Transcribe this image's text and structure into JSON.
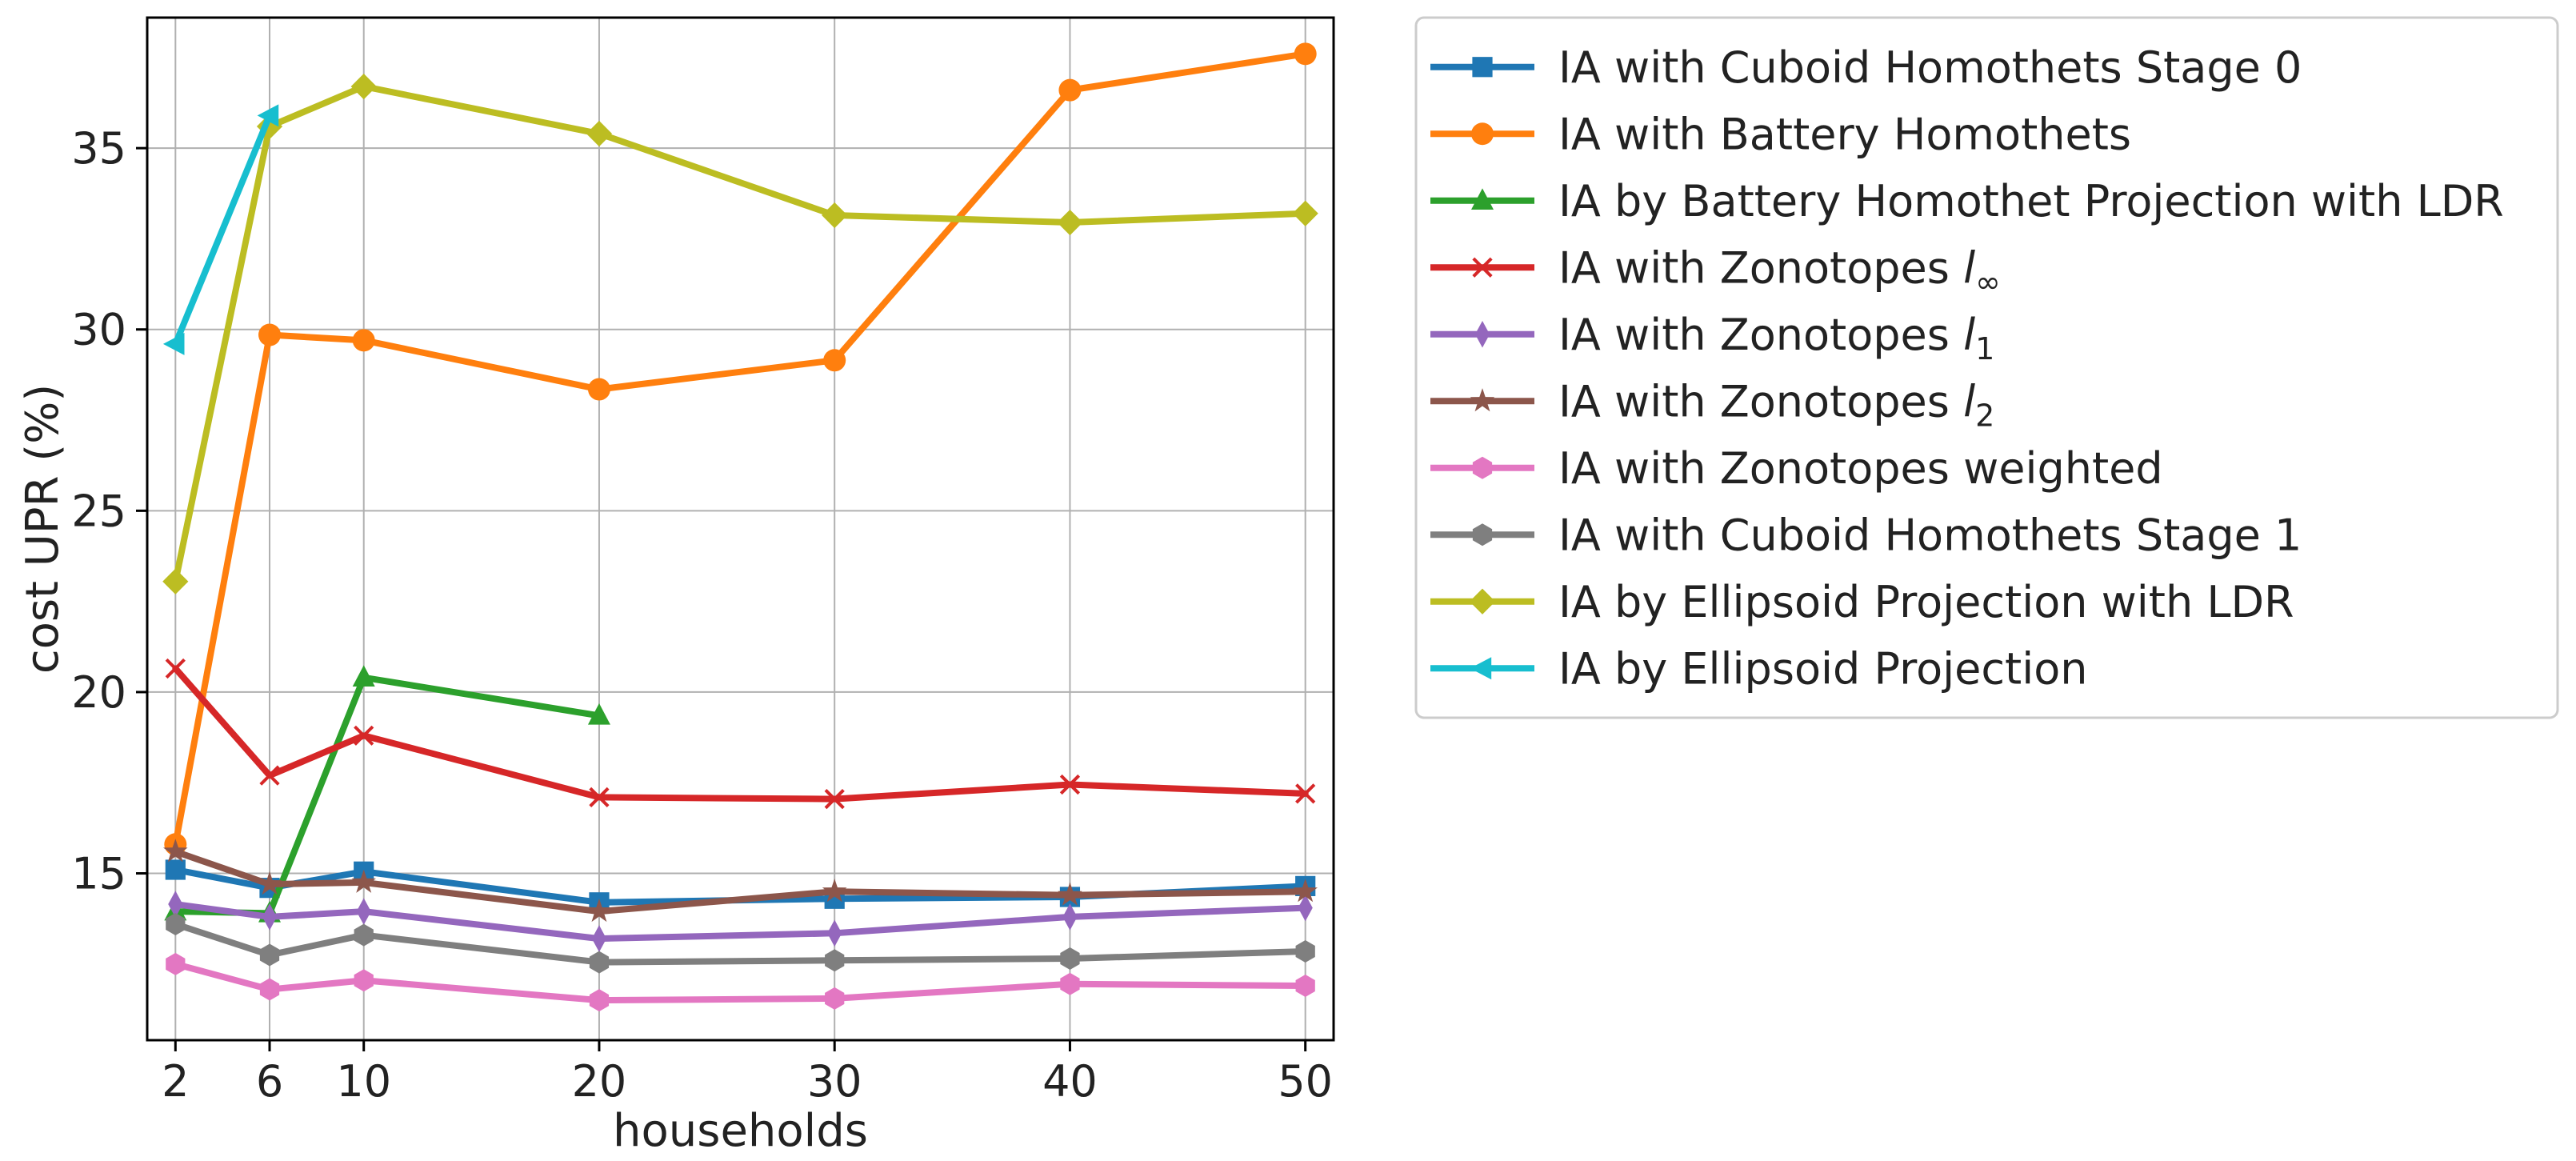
{
  "chart_data": {
    "type": "line",
    "title": "",
    "xlabel": "households",
    "ylabel": "cost UPR (%)",
    "xlim": [
      0.8,
      51.2
    ],
    "ylim": [
      10.4,
      38.6
    ],
    "xticks": [
      2,
      6,
      10,
      20,
      30,
      40,
      50
    ],
    "yticks": [
      15,
      20,
      25,
      30,
      35
    ],
    "grid": true,
    "legend_position": "outside-right-top",
    "series": [
      {
        "name": "IA with Cuboid Homothets Stage 0",
        "label_main": "IA with Cuboid Homothets Stage 0",
        "label_sym": "",
        "label_sub": "",
        "color": "#1f77b4",
        "marker": "square",
        "x": [
          2,
          6,
          10,
          20,
          30,
          40,
          50
        ],
        "y": [
          15.1,
          14.6,
          15.05,
          14.2,
          14.3,
          14.35,
          14.65
        ]
      },
      {
        "name": "IA with Battery Homothets",
        "label_main": "IA with Battery Homothets",
        "label_sym": "",
        "label_sub": "",
        "color": "#ff7f0e",
        "marker": "circle",
        "x": [
          2,
          6,
          10,
          20,
          30,
          40,
          50
        ],
        "y": [
          15.8,
          29.85,
          29.7,
          28.35,
          29.15,
          36.6,
          37.6
        ]
      },
      {
        "name": "IA by Battery Homothet Projection with LDR",
        "label_main": "IA by Battery Homothet Projection with LDR",
        "label_sym": "",
        "label_sub": "",
        "color": "#2ca02c",
        "marker": "triangle-up",
        "x": [
          2,
          6,
          10,
          20
        ],
        "y": [
          13.95,
          13.9,
          20.4,
          19.35
        ]
      },
      {
        "name": "IA with Zonotopes l∞",
        "label_main": "IA with Zonotopes ",
        "label_sym": "l",
        "label_sub": "∞",
        "color": "#d62728",
        "marker": "x",
        "x": [
          2,
          6,
          10,
          20,
          30,
          40,
          50
        ],
        "y": [
          20.65,
          17.7,
          18.8,
          17.1,
          17.05,
          17.45,
          17.2
        ]
      },
      {
        "name": "IA with Zonotopes l1",
        "label_main": "IA with Zonotopes ",
        "label_sym": "l",
        "label_sub": "1",
        "color": "#9467bd",
        "marker": "diamond-thin",
        "x": [
          2,
          6,
          10,
          20,
          30,
          40,
          50
        ],
        "y": [
          14.15,
          13.8,
          13.95,
          13.2,
          13.35,
          13.8,
          14.05
        ]
      },
      {
        "name": "IA with Zonotopes l2",
        "label_main": "IA with Zonotopes ",
        "label_sym": "l",
        "label_sub": "2",
        "color": "#8c564b",
        "marker": "star",
        "x": [
          2,
          6,
          10,
          20,
          30,
          40,
          50
        ],
        "y": [
          15.6,
          14.7,
          14.75,
          13.95,
          14.5,
          14.4,
          14.5
        ]
      },
      {
        "name": "IA with Zonotopes weighted",
        "label_main": "IA with Zonotopes weighted",
        "label_sym": "",
        "label_sub": "",
        "color": "#e377c2",
        "marker": "hexagon",
        "x": [
          2,
          6,
          10,
          20,
          30,
          40,
          50
        ],
        "y": [
          12.5,
          11.8,
          12.05,
          11.5,
          11.55,
          11.95,
          11.9
        ]
      },
      {
        "name": "IA with Cuboid Homothets Stage 1",
        "label_main": "IA with Cuboid Homothets Stage 1",
        "label_sym": "",
        "label_sub": "",
        "color": "#7f7f7f",
        "marker": "hexagon",
        "x": [
          2,
          6,
          10,
          20,
          30,
          40,
          50
        ],
        "y": [
          13.6,
          12.75,
          13.3,
          12.55,
          12.6,
          12.65,
          12.85
        ]
      },
      {
        "name": "IA by Ellipsoid Projection with LDR",
        "label_main": "IA by Ellipsoid Projection with LDR",
        "label_sym": "",
        "label_sub": "",
        "color": "#bcbd22",
        "marker": "diamond",
        "x": [
          2,
          6,
          10,
          20,
          30,
          40,
          50
        ],
        "y": [
          23.05,
          35.6,
          36.7,
          35.4,
          33.15,
          32.95,
          33.2
        ]
      },
      {
        "name": "IA by Ellipsoid Projection",
        "label_main": "IA by Ellipsoid Projection",
        "label_sym": "",
        "label_sub": "",
        "color": "#17becf",
        "marker": "triangle-left",
        "x": [
          2,
          6
        ],
        "y": [
          29.6,
          35.9
        ]
      }
    ]
  }
}
